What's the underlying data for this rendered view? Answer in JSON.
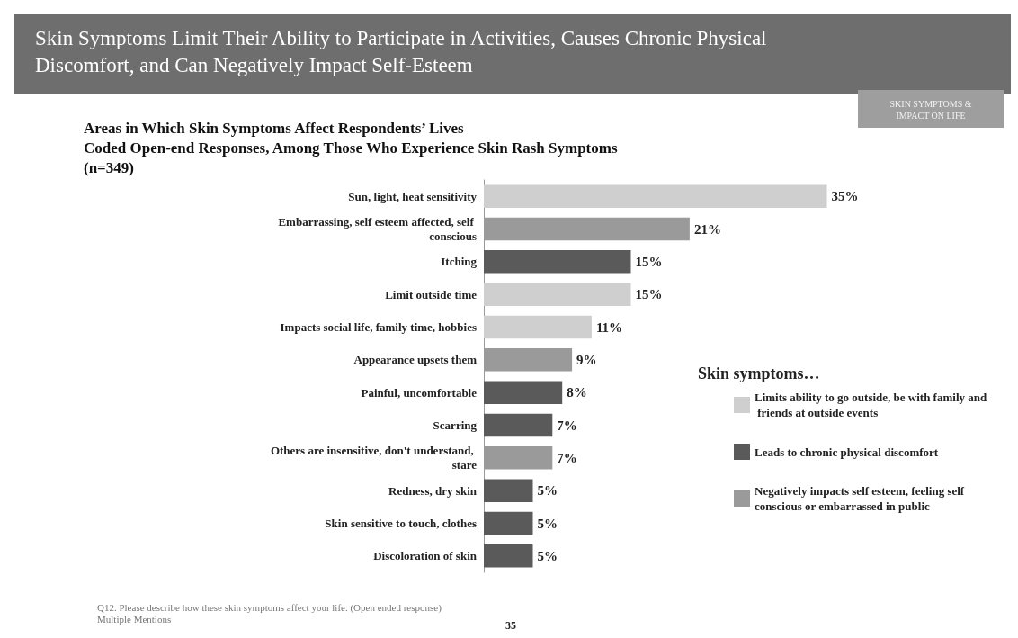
{
  "chart_data": {
    "type": "bar",
    "orientation": "horizontal",
    "stacked": true,
    "title": "Skin Symptoms Limit Their Ability to Participate in Activities, Causes Chronic Physical Discomfort, and Can Negatively Impact Self-Esteem",
    "subtitle": "Areas in Which Skin Symptoms Affect Respondents’ Lives\nCoded Open-end Responses, Among Those Who Experience Skin Rash Symptoms\n(n=349)",
    "legend_title": "Skin symptoms…",
    "legend": "right",
    "categories": [
      "Sun, light, heat sensitivity",
      "Embarrassing, self esteem affected, self conscious",
      "Itching",
      "Limit outside time",
      "Impacts social life, family time, hobbies",
      "Appearance upsets them",
      "Painful, uncomfortable",
      "Scarring",
      "Others are insensitive, don't understand, stare",
      "Redness, dry skin",
      "Skin sensitive to touch, clothes",
      "Discoloration of skin"
    ],
    "series": [
      {
        "name": "Limits ability to go outside, be with family and friends at outside events",
        "color": "#cfcfcf",
        "values": [
          35,
          null,
          null,
          15,
          11,
          null,
          null,
          null,
          null,
          null,
          null,
          null
        ],
        "value_labels": [
          "35%",
          null,
          null,
          "15%",
          "11%",
          null,
          null,
          null,
          null,
          null,
          null,
          null
        ]
      },
      {
        "name": "Leads to chronic physical discomfort",
        "color": "#5a5a5a",
        "values": [
          null,
          null,
          15,
          null,
          null,
          null,
          8,
          7,
          null,
          5,
          5,
          5
        ],
        "value_labels": [
          null,
          null,
          "15%",
          null,
          null,
          null,
          "8%",
          "7%",
          null,
          "5%",
          "5%",
          "5%"
        ]
      },
      {
        "name": "Negatively impacts self esteem, feeling self conscious or embarrassed in public",
        "color": "#9a9a9a",
        "values": [
          null,
          21,
          null,
          null,
          null,
          9,
          null,
          null,
          7,
          null,
          null,
          null
        ],
        "value_labels": [
          null,
          "21%",
          null,
          null,
          null,
          "9%",
          null,
          null,
          "7%",
          null,
          null,
          null
        ]
      }
    ],
    "annotations": [
      "SKIN SYMPTOMS & IMPACT ON LIFE",
      "Q12. Please describe how these skin symptoms affect your life. (Open ended response)\nMultiple Mentions",
      "35"
    ]
  }
}
